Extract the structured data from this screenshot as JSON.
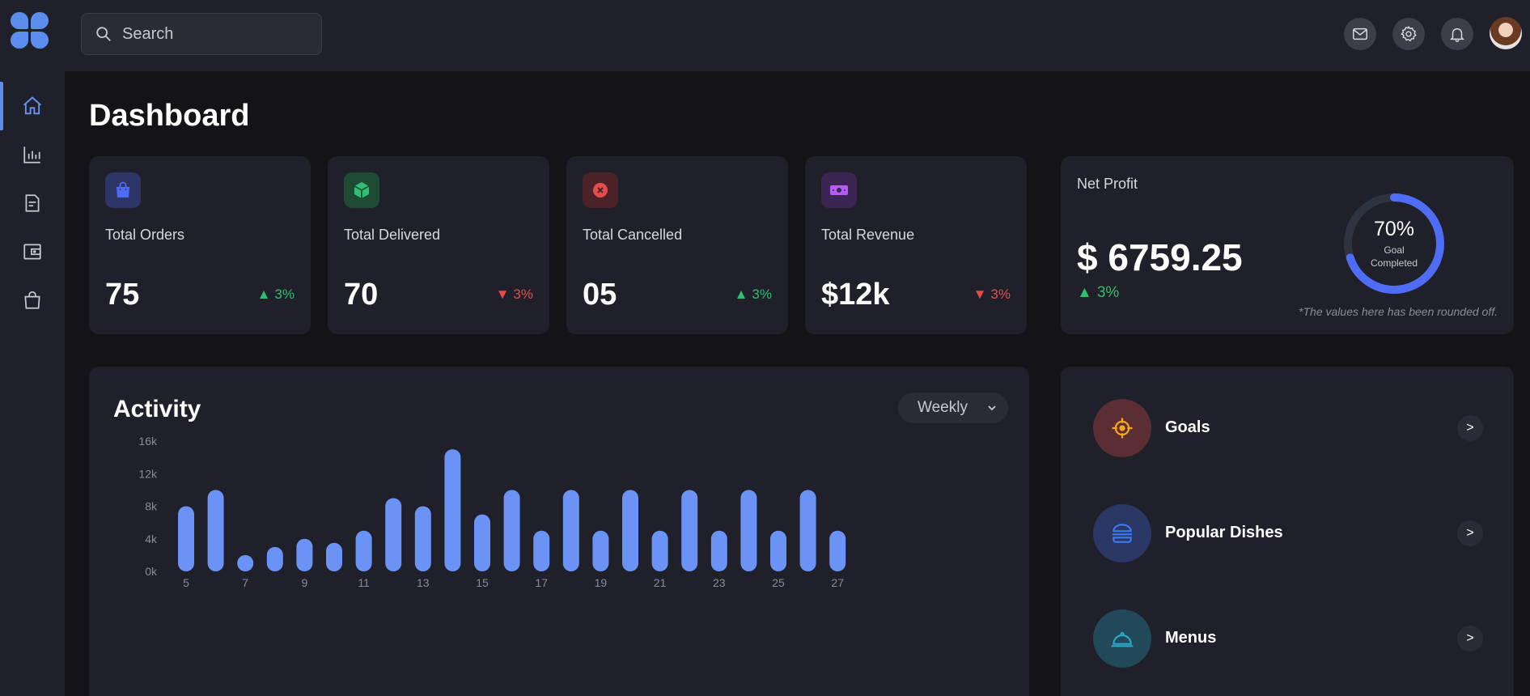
{
  "search": {
    "placeholder": "Search"
  },
  "page": {
    "title": "Dashboard"
  },
  "stats": [
    {
      "label": "Total Orders",
      "value": "75",
      "trend": "3%",
      "direction": "up",
      "icon": "shopping-bag-icon",
      "icon_color": "#4f6cf7",
      "icon_bg": "#2d3566"
    },
    {
      "label": "Total Delivered",
      "value": "70",
      "trend": "3%",
      "direction": "down",
      "icon": "package-icon",
      "icon_color": "#2fbf71",
      "icon_bg": "#1f4a34"
    },
    {
      "label": "Total Cancelled",
      "value": "05",
      "trend": "3%",
      "direction": "up",
      "icon": "cancel-icon",
      "icon_color": "#e54b4b",
      "icon_bg": "#4a2228"
    },
    {
      "label": "Total Revenue",
      "value": "$12k",
      "trend": "3%",
      "direction": "down",
      "icon": "money-icon",
      "icon_color": "#b65cf0",
      "icon_bg": "#3b2552"
    }
  ],
  "net_profit": {
    "label": "Net Profit",
    "value": "$ 6759.25",
    "trend": "3%",
    "goal_percent": "70%",
    "goal_fraction": 0.7,
    "goal_line1": "Goal",
    "goal_line2": "Completed",
    "note": "*The values here has been rounded off."
  },
  "activity": {
    "title": "Activity",
    "period": "Weekly"
  },
  "chart_data": {
    "type": "bar",
    "categories": [
      "5",
      "6",
      "7",
      "8",
      "9",
      "10",
      "11",
      "12",
      "13",
      "14",
      "15",
      "16",
      "17",
      "18",
      "19",
      "20",
      "21",
      "22",
      "23",
      "24",
      "25",
      "26",
      "27"
    ],
    "x_tick_labels": [
      "5",
      "7",
      "9",
      "11",
      "13",
      "15",
      "17",
      "19",
      "21",
      "23",
      "25",
      "27"
    ],
    "values": [
      8000,
      10000,
      2000,
      3000,
      4000,
      3500,
      5000,
      9000,
      8000,
      15000,
      7000,
      10000,
      5000,
      10000,
      5000,
      10000,
      5000,
      10000,
      5000,
      10000,
      5000,
      10000,
      5000
    ],
    "y_tick_labels": [
      "0k",
      "4k",
      "8k",
      "12k",
      "16k"
    ],
    "ylim": [
      0,
      16000
    ],
    "xlabel": "",
    "ylabel": "",
    "bar_color": "#6b93f5",
    "grid": false
  },
  "links": [
    {
      "label": "Goals",
      "icon": "target-icon",
      "icon_color": "#f5a623",
      "bg": "#5a2e33"
    },
    {
      "label": "Popular Dishes",
      "icon": "burger-icon",
      "icon_color": "#3d7bf5",
      "bg": "#2b3765"
    },
    {
      "label": "Menus",
      "icon": "cloche-icon",
      "icon_color": "#2aa7c9",
      "bg": "#21495a"
    }
  ],
  "chevron": ">"
}
